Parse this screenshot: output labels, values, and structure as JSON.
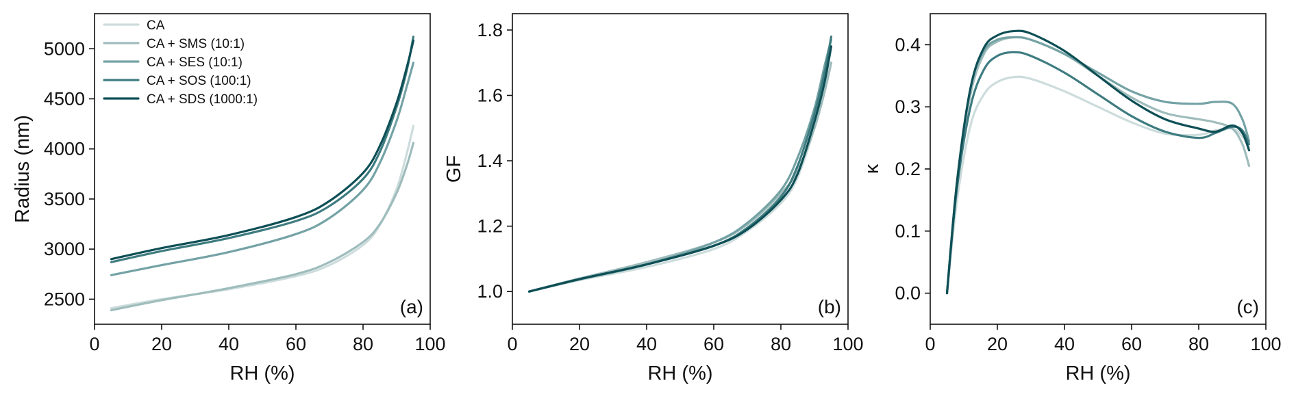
{
  "chart_data": [
    {
      "type": "line",
      "panel_tag": "(a)",
      "xlabel": "RH (%)",
      "ylabel": "Radius (nm)",
      "xlim": [
        0,
        100
      ],
      "ylim": [
        2250,
        5350
      ],
      "xticks": [
        0,
        20,
        40,
        60,
        80,
        100
      ],
      "yticks": [
        2500,
        3000,
        3500,
        4000,
        4500,
        5000
      ],
      "grid": false,
      "legend_position": "top-left",
      "series": [
        {
          "name": "CA",
          "color": "#cddcdc",
          "x": [
            5,
            20,
            40,
            60,
            70,
            80,
            85,
            90,
            93,
            95
          ],
          "y": [
            2410,
            2500,
            2600,
            2730,
            2840,
            3040,
            3240,
            3600,
            3950,
            4230
          ]
        },
        {
          "name": "CA + SMS (10:1)",
          "color": "#9fbcbc",
          "x": [
            5,
            20,
            40,
            60,
            70,
            80,
            85,
            90,
            93,
            95
          ],
          "y": [
            2390,
            2490,
            2610,
            2750,
            2870,
            3070,
            3250,
            3560,
            3830,
            4060
          ]
        },
        {
          "name": "CA + SES (10:1)",
          "color": "#74a2a5",
          "x": [
            5,
            20,
            40,
            60,
            70,
            80,
            85,
            90,
            93,
            95
          ],
          "y": [
            2740,
            2840,
            2970,
            3150,
            3310,
            3590,
            3860,
            4280,
            4620,
            4860
          ]
        },
        {
          "name": "CA + SOS (100:1)",
          "color": "#3e7c80",
          "x": [
            5,
            20,
            40,
            60,
            70,
            80,
            85,
            90,
            93,
            95
          ],
          "y": [
            2870,
            2980,
            3110,
            3280,
            3430,
            3700,
            3970,
            4420,
            4780,
            5120
          ]
        },
        {
          "name": "CA + SDS (1000:1)",
          "color": "#0e4f56",
          "x": [
            5,
            20,
            40,
            60,
            70,
            80,
            85,
            90,
            93,
            95
          ],
          "y": [
            2900,
            3010,
            3140,
            3320,
            3480,
            3760,
            4030,
            4460,
            4810,
            5080
          ]
        }
      ]
    },
    {
      "type": "line",
      "panel_tag": "(b)",
      "xlabel": "RH (%)",
      "ylabel": "GF",
      "xlim": [
        0,
        100
      ],
      "ylim": [
        0.9,
        1.85
      ],
      "xticks": [
        0,
        20,
        40,
        60,
        80,
        100
      ],
      "yticks": [
        1.0,
        1.2,
        1.4,
        1.6,
        1.8
      ],
      "grid": false,
      "series": [
        {
          "name": "CA",
          "color": "#cddcdc",
          "x": [
            5,
            20,
            40,
            60,
            70,
            80,
            85,
            90,
            93,
            95
          ],
          "y": [
            1.0,
            1.035,
            1.075,
            1.13,
            1.185,
            1.27,
            1.35,
            1.5,
            1.62,
            1.7
          ]
        },
        {
          "name": "CA + SMS (10:1)",
          "color": "#9fbcbc",
          "x": [
            5,
            20,
            40,
            60,
            70,
            80,
            85,
            90,
            93,
            95
          ],
          "y": [
            1.0,
            1.04,
            1.09,
            1.15,
            1.205,
            1.3,
            1.37,
            1.5,
            1.61,
            1.7
          ]
        },
        {
          "name": "CA + SES (10:1)",
          "color": "#74a2a5",
          "x": [
            5,
            20,
            40,
            60,
            70,
            80,
            85,
            90,
            93,
            95
          ],
          "y": [
            1.0,
            1.037,
            1.083,
            1.15,
            1.21,
            1.31,
            1.41,
            1.56,
            1.69,
            1.77
          ]
        },
        {
          "name": "CA + SOS (100:1)",
          "color": "#3e7c80",
          "x": [
            5,
            20,
            40,
            60,
            70,
            80,
            85,
            90,
            93,
            95
          ],
          "y": [
            1.0,
            1.038,
            1.083,
            1.14,
            1.195,
            1.29,
            1.385,
            1.545,
            1.67,
            1.78
          ]
        },
        {
          "name": "CA + SDS (1000:1)",
          "color": "#0e4f56",
          "x": [
            5,
            20,
            40,
            60,
            70,
            80,
            85,
            90,
            93,
            95
          ],
          "y": [
            1.0,
            1.038,
            1.083,
            1.14,
            1.19,
            1.28,
            1.36,
            1.52,
            1.64,
            1.75
          ]
        }
      ]
    },
    {
      "type": "line",
      "panel_tag": "(c)",
      "xlabel": "RH (%)",
      "ylabel": "κ",
      "xlim": [
        0,
        100
      ],
      "ylim": [
        -0.05,
        0.45
      ],
      "xticks": [
        0,
        20,
        40,
        60,
        80,
        100
      ],
      "yticks": [
        0.0,
        0.1,
        0.2,
        0.3,
        0.4
      ],
      "grid": false,
      "series": [
        {
          "name": "CA",
          "color": "#cddcdc",
          "x": [
            5,
            8,
            12,
            16,
            20,
            25,
            30,
            40,
            50,
            60,
            70,
            80,
            85,
            90,
            93,
            95
          ],
          "y": [
            0.0,
            0.15,
            0.27,
            0.32,
            0.34,
            0.348,
            0.345,
            0.325,
            0.3,
            0.275,
            0.257,
            0.255,
            0.262,
            0.265,
            0.252,
            0.235
          ]
        },
        {
          "name": "CA + SMS (10:1)",
          "color": "#9fbcbc",
          "x": [
            5,
            8,
            12,
            16,
            20,
            25,
            30,
            40,
            50,
            60,
            70,
            80,
            85,
            90,
            93,
            95
          ],
          "y": [
            0.0,
            0.18,
            0.32,
            0.385,
            0.405,
            0.412,
            0.408,
            0.385,
            0.35,
            0.315,
            0.29,
            0.28,
            0.275,
            0.265,
            0.24,
            0.205
          ]
        },
        {
          "name": "CA + SES (10:1)",
          "color": "#74a2a5",
          "x": [
            5,
            8,
            12,
            16,
            20,
            25,
            30,
            40,
            50,
            60,
            70,
            80,
            85,
            90,
            93,
            95
          ],
          "y": [
            0.0,
            0.18,
            0.33,
            0.39,
            0.408,
            0.412,
            0.408,
            0.385,
            0.355,
            0.325,
            0.308,
            0.305,
            0.308,
            0.305,
            0.28,
            0.245
          ]
        },
        {
          "name": "CA + SOS (100:1)",
          "color": "#3e7c80",
          "x": [
            5,
            8,
            12,
            16,
            20,
            25,
            30,
            40,
            50,
            60,
            70,
            80,
            85,
            90,
            93,
            95
          ],
          "y": [
            0.0,
            0.17,
            0.3,
            0.36,
            0.382,
            0.388,
            0.382,
            0.355,
            0.32,
            0.285,
            0.26,
            0.25,
            0.258,
            0.268,
            0.262,
            0.24
          ]
        },
        {
          "name": "CA + SDS (1000:1)",
          "color": "#0e4f56",
          "x": [
            5,
            8,
            12,
            16,
            20,
            25,
            30,
            40,
            50,
            60,
            70,
            80,
            85,
            90,
            93,
            95
          ],
          "y": [
            0.0,
            0.18,
            0.33,
            0.395,
            0.415,
            0.422,
            0.418,
            0.39,
            0.35,
            0.31,
            0.28,
            0.265,
            0.26,
            0.27,
            0.258,
            0.23
          ]
        }
      ]
    }
  ]
}
